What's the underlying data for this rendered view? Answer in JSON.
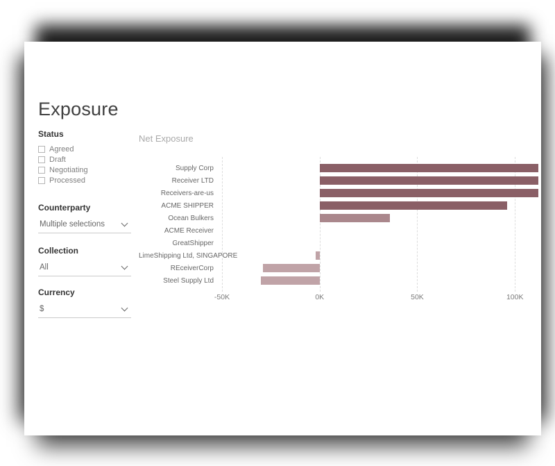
{
  "title": "Exposure",
  "filters": {
    "status": {
      "label": "Status",
      "options": [
        "Agreed",
        "Draft",
        "Negotiating",
        "Processed"
      ]
    },
    "counterparty": {
      "label": "Counterparty",
      "value": "Multiple selections"
    },
    "collection": {
      "label": "Collection",
      "value": "All"
    },
    "currency": {
      "label": "Currency",
      "value": "$"
    }
  },
  "chart_data": {
    "type": "bar",
    "orientation": "horizontal",
    "title": "Net Exposure",
    "categories": [
      "Supply Corp",
      "Receiver LTD",
      "Receivers-are-us",
      "ACME SHIPPER",
      "Ocean Bulkers",
      "ACME Receiver",
      "GreatShipper",
      "LimeShipping Ltd, SINGAPORE",
      "REceiverCorp",
      "Steel Supply Ltd"
    ],
    "values": [
      112000,
      112000,
      112000,
      96000,
      36000,
      0,
      0,
      -2000,
      -29000,
      -30000
    ],
    "bar_colors": [
      "#8a5f66",
      "#8a5f66",
      "#8a5f66",
      "#8a5f66",
      "#aa878c",
      "#8a5f66",
      "#8a5f66",
      "#c0a3a7",
      "#c0a3a7",
      "#c0a3a7"
    ],
    "xlim": [
      -50000,
      112000
    ],
    "ticks": [
      {
        "value": -50000,
        "label": "-50K"
      },
      {
        "value": 0,
        "label": "0K"
      },
      {
        "value": 50000,
        "label": "50K"
      },
      {
        "value": 100000,
        "label": "100K"
      }
    ],
    "grid": "dashed-vertical",
    "legend": "none",
    "xlabel": "",
    "ylabel": ""
  },
  "colors": {
    "bar_dark": "#8a5f66",
    "bar_light": "#c0a3a7",
    "grid": "#dcdcdc",
    "axis_text": "#7a7a7a",
    "chart_title": "#a9a9a9"
  }
}
